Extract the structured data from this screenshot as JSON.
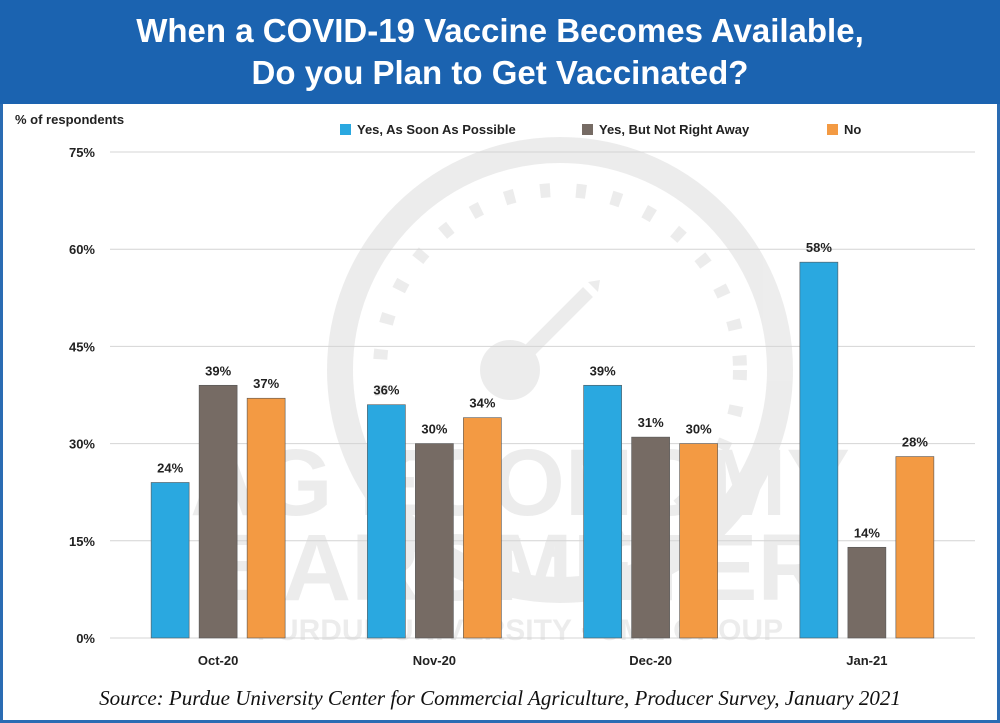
{
  "header": {
    "title_line1": "When a COVID-19 Vaccine Becomes Available,",
    "title_line2": "Do you Plan to Get Vaccinated?"
  },
  "source": "Source: Purdue University Center for Commercial Agriculture, Producer Survey, January 2021",
  "chart_data": {
    "type": "bar",
    "title": "When a COVID-19 Vaccine Becomes Available, Do you Plan to Get Vaccinated?",
    "ylabel": "% of respondents",
    "xlabel": "",
    "categories": [
      "Oct-20",
      "Nov-20",
      "Dec-20",
      "Jan-21"
    ],
    "series": [
      {
        "name": "Yes, As Soon As Possible",
        "color": "#2aa8e0",
        "values": [
          24,
          36,
          39,
          58
        ]
      },
      {
        "name": "Yes, But Not Right Away",
        "color": "#766b64",
        "values": [
          39,
          30,
          31,
          14
        ]
      },
      {
        "name": "No",
        "color": "#f39a43",
        "values": [
          37,
          34,
          30,
          28
        ]
      }
    ],
    "ylim": [
      0,
      75
    ],
    "yticks": [
      0,
      15,
      30,
      45,
      60,
      75
    ],
    "ytick_labels": [
      "0%",
      "15%",
      "30%",
      "45%",
      "60%",
      "75%"
    ],
    "data_labels": [
      [
        "24%",
        "36%",
        "39%",
        "58%"
      ],
      [
        "39%",
        "30%",
        "31%",
        "14%"
      ],
      [
        "37%",
        "34%",
        "30%",
        "28%"
      ]
    ],
    "legend_position": "top",
    "grid": true
  },
  "watermark": {
    "line1": "AG ECONOMY",
    "line2": "BAROMETER",
    "line3": "PURDUE UNIVERSITY · CME GROUP"
  }
}
